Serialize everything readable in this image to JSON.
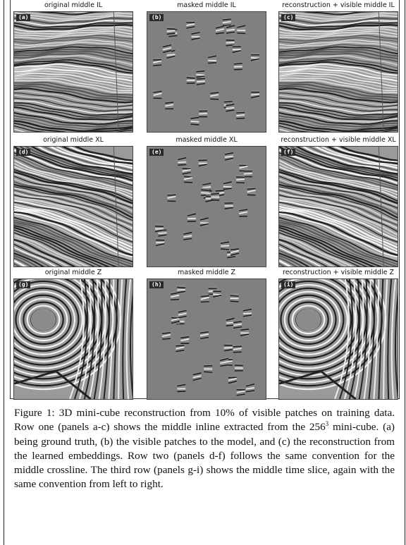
{
  "panels": [
    {
      "id": "a",
      "tag": "(a)",
      "title": "original middle IL",
      "kind": "inline"
    },
    {
      "id": "b",
      "tag": "(b)",
      "title": "masked middle IL",
      "kind": "mask"
    },
    {
      "id": "c",
      "tag": "(c)",
      "title": "reconstruction + visible middle IL",
      "kind": "inline"
    },
    {
      "id": "d",
      "tag": "(d)",
      "title": "original middle XL",
      "kind": "xline"
    },
    {
      "id": "e",
      "tag": "(e)",
      "title": "masked middle XL",
      "kind": "mask"
    },
    {
      "id": "f",
      "tag": "(f)",
      "title": "reconstruction + visible middle XL",
      "kind": "xline"
    },
    {
      "id": "g",
      "tag": "(g)",
      "title": "original middle Z",
      "kind": "zslice"
    },
    {
      "id": "h",
      "tag": "(h)",
      "title": "masked middle Z",
      "kind": "mask"
    },
    {
      "id": "i",
      "tag": "(i)",
      "title": "reconstruction + visible middle Z",
      "kind": "zslice"
    }
  ],
  "caption": {
    "part1": "Figure 1: 3D mini-cube reconstruction from 10% of visible patches on training data. Row one (panels a-c) shows the middle inline extracted from the 256",
    "sup": "3",
    "part2": " mini-cube. (a) being ground truth, (b) the visible patches to the model, and (c) the reconstruction from the learned embeddings. Row two (panels d-f) follows the same convention for the middle crossline. The third row (panels g-i) shows the middle time slice, again with the same convention from left to right."
  }
}
